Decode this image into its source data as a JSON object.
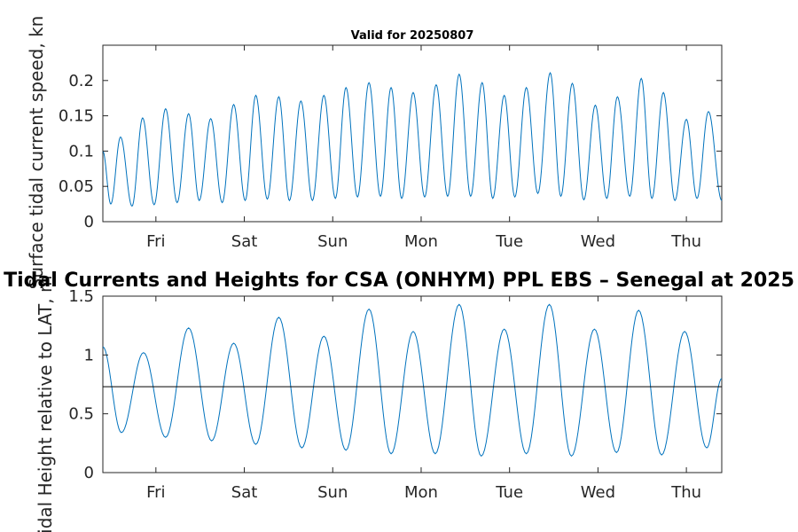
{
  "figure": {
    "big_title": "Tidal Currents and Heights for CSA (ONHYM) PPL EBS  – Senegal at 2025",
    "top_title": "Valid for 20250807"
  },
  "colors": {
    "line": "#0072bd",
    "axis": "#262626",
    "reference_line": "#000000"
  },
  "chart_data": [
    {
      "type": "line",
      "title": "Valid for 20250807",
      "ylabel": "Surface tidal current speed, kn",
      "xlabel": "",
      "x_unit": "days",
      "xlim": [
        0,
        7
      ],
      "ylim": [
        0,
        0.25
      ],
      "x_ticks": [
        {
          "x": 0.6,
          "label": "Fri"
        },
        {
          "x": 1.6,
          "label": "Sat"
        },
        {
          "x": 2.6,
          "label": "Sun"
        },
        {
          "x": 3.6,
          "label": "Mon"
        },
        {
          "x": 4.6,
          "label": "Tue"
        },
        {
          "x": 5.6,
          "label": "Wed"
        },
        {
          "x": 6.6,
          "label": "Thu"
        }
      ],
      "y_ticks": [
        {
          "y": 0,
          "label": "0"
        },
        {
          "y": 0.05,
          "label": "0.05"
        },
        {
          "y": 0.1,
          "label": "0.1"
        },
        {
          "y": 0.15,
          "label": "0.15"
        },
        {
          "y": 0.2,
          "label": "0.2"
        }
      ],
      "grid": false,
      "series": [
        {
          "extrema": [
            [
              0.0,
              0.1
            ],
            [
              0.09,
              0.025
            ],
            [
              0.2,
              0.12
            ],
            [
              0.33,
              0.022
            ],
            [
              0.45,
              0.147
            ],
            [
              0.58,
              0.024
            ],
            [
              0.71,
              0.16
            ],
            [
              0.84,
              0.027
            ],
            [
              0.97,
              0.153
            ],
            [
              1.09,
              0.03
            ],
            [
              1.22,
              0.146
            ],
            [
              1.35,
              0.027
            ],
            [
              1.48,
              0.166
            ],
            [
              1.61,
              0.03
            ],
            [
              1.73,
              0.179
            ],
            [
              1.86,
              0.032
            ],
            [
              1.99,
              0.177
            ],
            [
              2.11,
              0.03
            ],
            [
              2.24,
              0.171
            ],
            [
              2.37,
              0.03
            ],
            [
              2.5,
              0.179
            ],
            [
              2.63,
              0.033
            ],
            [
              2.75,
              0.19
            ],
            [
              2.88,
              0.035
            ],
            [
              3.01,
              0.197
            ],
            [
              3.14,
              0.036
            ],
            [
              3.26,
              0.19
            ],
            [
              3.38,
              0.033
            ],
            [
              3.51,
              0.183
            ],
            [
              3.64,
              0.035
            ],
            [
              3.77,
              0.194
            ],
            [
              3.9,
              0.036
            ],
            [
              4.03,
              0.209
            ],
            [
              4.16,
              0.036
            ],
            [
              4.29,
              0.197
            ],
            [
              4.41,
              0.033
            ],
            [
              4.54,
              0.179
            ],
            [
              4.66,
              0.035
            ],
            [
              4.79,
              0.19
            ],
            [
              4.92,
              0.04
            ],
            [
              5.06,
              0.211
            ],
            [
              5.18,
              0.036
            ],
            [
              5.31,
              0.196
            ],
            [
              5.44,
              0.031
            ],
            [
              5.57,
              0.165
            ],
            [
              5.7,
              0.033
            ],
            [
              5.82,
              0.177
            ],
            [
              5.96,
              0.036
            ],
            [
              6.09,
              0.203
            ],
            [
              6.21,
              0.033
            ],
            [
              6.34,
              0.183
            ],
            [
              6.47,
              0.03
            ],
            [
              6.6,
              0.145
            ],
            [
              6.72,
              0.033
            ],
            [
              6.85,
              0.156
            ],
            [
              7.0,
              0.03
            ]
          ]
        }
      ]
    },
    {
      "type": "line",
      "title": "",
      "ylabel": "Tidal Height relative to LAT, m",
      "xlabel": "",
      "x_unit": "days",
      "xlim": [
        0,
        7
      ],
      "ylim": [
        0,
        1.5
      ],
      "reference_line": 0.73,
      "x_ticks": [
        {
          "x": 0.6,
          "label": "Fri"
        },
        {
          "x": 1.6,
          "label": "Sat"
        },
        {
          "x": 2.6,
          "label": "Sun"
        },
        {
          "x": 3.6,
          "label": "Mon"
        },
        {
          "x": 4.6,
          "label": "Tue"
        },
        {
          "x": 5.6,
          "label": "Wed"
        },
        {
          "x": 6.6,
          "label": "Thu"
        }
      ],
      "y_ticks": [
        {
          "y": 0,
          "label": "0"
        },
        {
          "y": 0.5,
          "label": "0.5"
        },
        {
          "y": 1,
          "label": "1"
        },
        {
          "y": 1.5,
          "label": "1.5"
        }
      ],
      "grid": false,
      "series": [
        {
          "extrema": [
            [
              0.0,
              1.07
            ],
            [
              0.21,
              0.34
            ],
            [
              0.46,
              1.02
            ],
            [
              0.71,
              0.3
            ],
            [
              0.97,
              1.23
            ],
            [
              1.23,
              0.27
            ],
            [
              1.48,
              1.1
            ],
            [
              1.73,
              0.24
            ],
            [
              1.99,
              1.32
            ],
            [
              2.25,
              0.21
            ],
            [
              2.5,
              1.16
            ],
            [
              2.75,
              0.19
            ],
            [
              3.01,
              1.39
            ],
            [
              3.26,
              0.16
            ],
            [
              3.51,
              1.2
            ],
            [
              3.76,
              0.16
            ],
            [
              4.03,
              1.43
            ],
            [
              4.28,
              0.14
            ],
            [
              4.54,
              1.22
            ],
            [
              4.79,
              0.16
            ],
            [
              5.05,
              1.43
            ],
            [
              5.3,
              0.14
            ],
            [
              5.56,
              1.22
            ],
            [
              5.81,
              0.17
            ],
            [
              6.06,
              1.38
            ],
            [
              6.32,
              0.15
            ],
            [
              6.58,
              1.2
            ],
            [
              6.83,
              0.21
            ],
            [
              7.0,
              0.8
            ]
          ]
        }
      ]
    }
  ]
}
